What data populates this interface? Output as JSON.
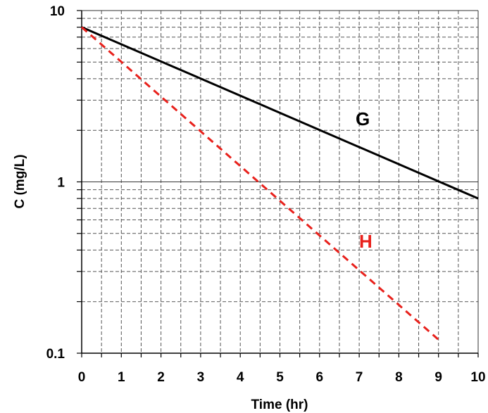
{
  "chart_data": {
    "type": "line",
    "xlabel": "Time (hr)",
    "ylabel": "C (mg/L)",
    "xlim": [
      0,
      10
    ],
    "ylim": [
      0.1,
      10
    ],
    "y_scale": "log",
    "grid": true,
    "x_ticks": [
      "0",
      "1",
      "2",
      "3",
      "4",
      "5",
      "6",
      "7",
      "8",
      "9",
      "10"
    ],
    "y_ticks": [
      "0.1",
      "1",
      "10"
    ],
    "series": [
      {
        "name": "G",
        "color": "#000000",
        "dash": "solid",
        "x": [
          0,
          10
        ],
        "y": [
          8,
          0.8
        ]
      },
      {
        "name": "H",
        "color": "#e8211c",
        "dash": "dashed",
        "x": [
          0,
          9
        ],
        "y": [
          8,
          0.12
        ]
      }
    ]
  }
}
